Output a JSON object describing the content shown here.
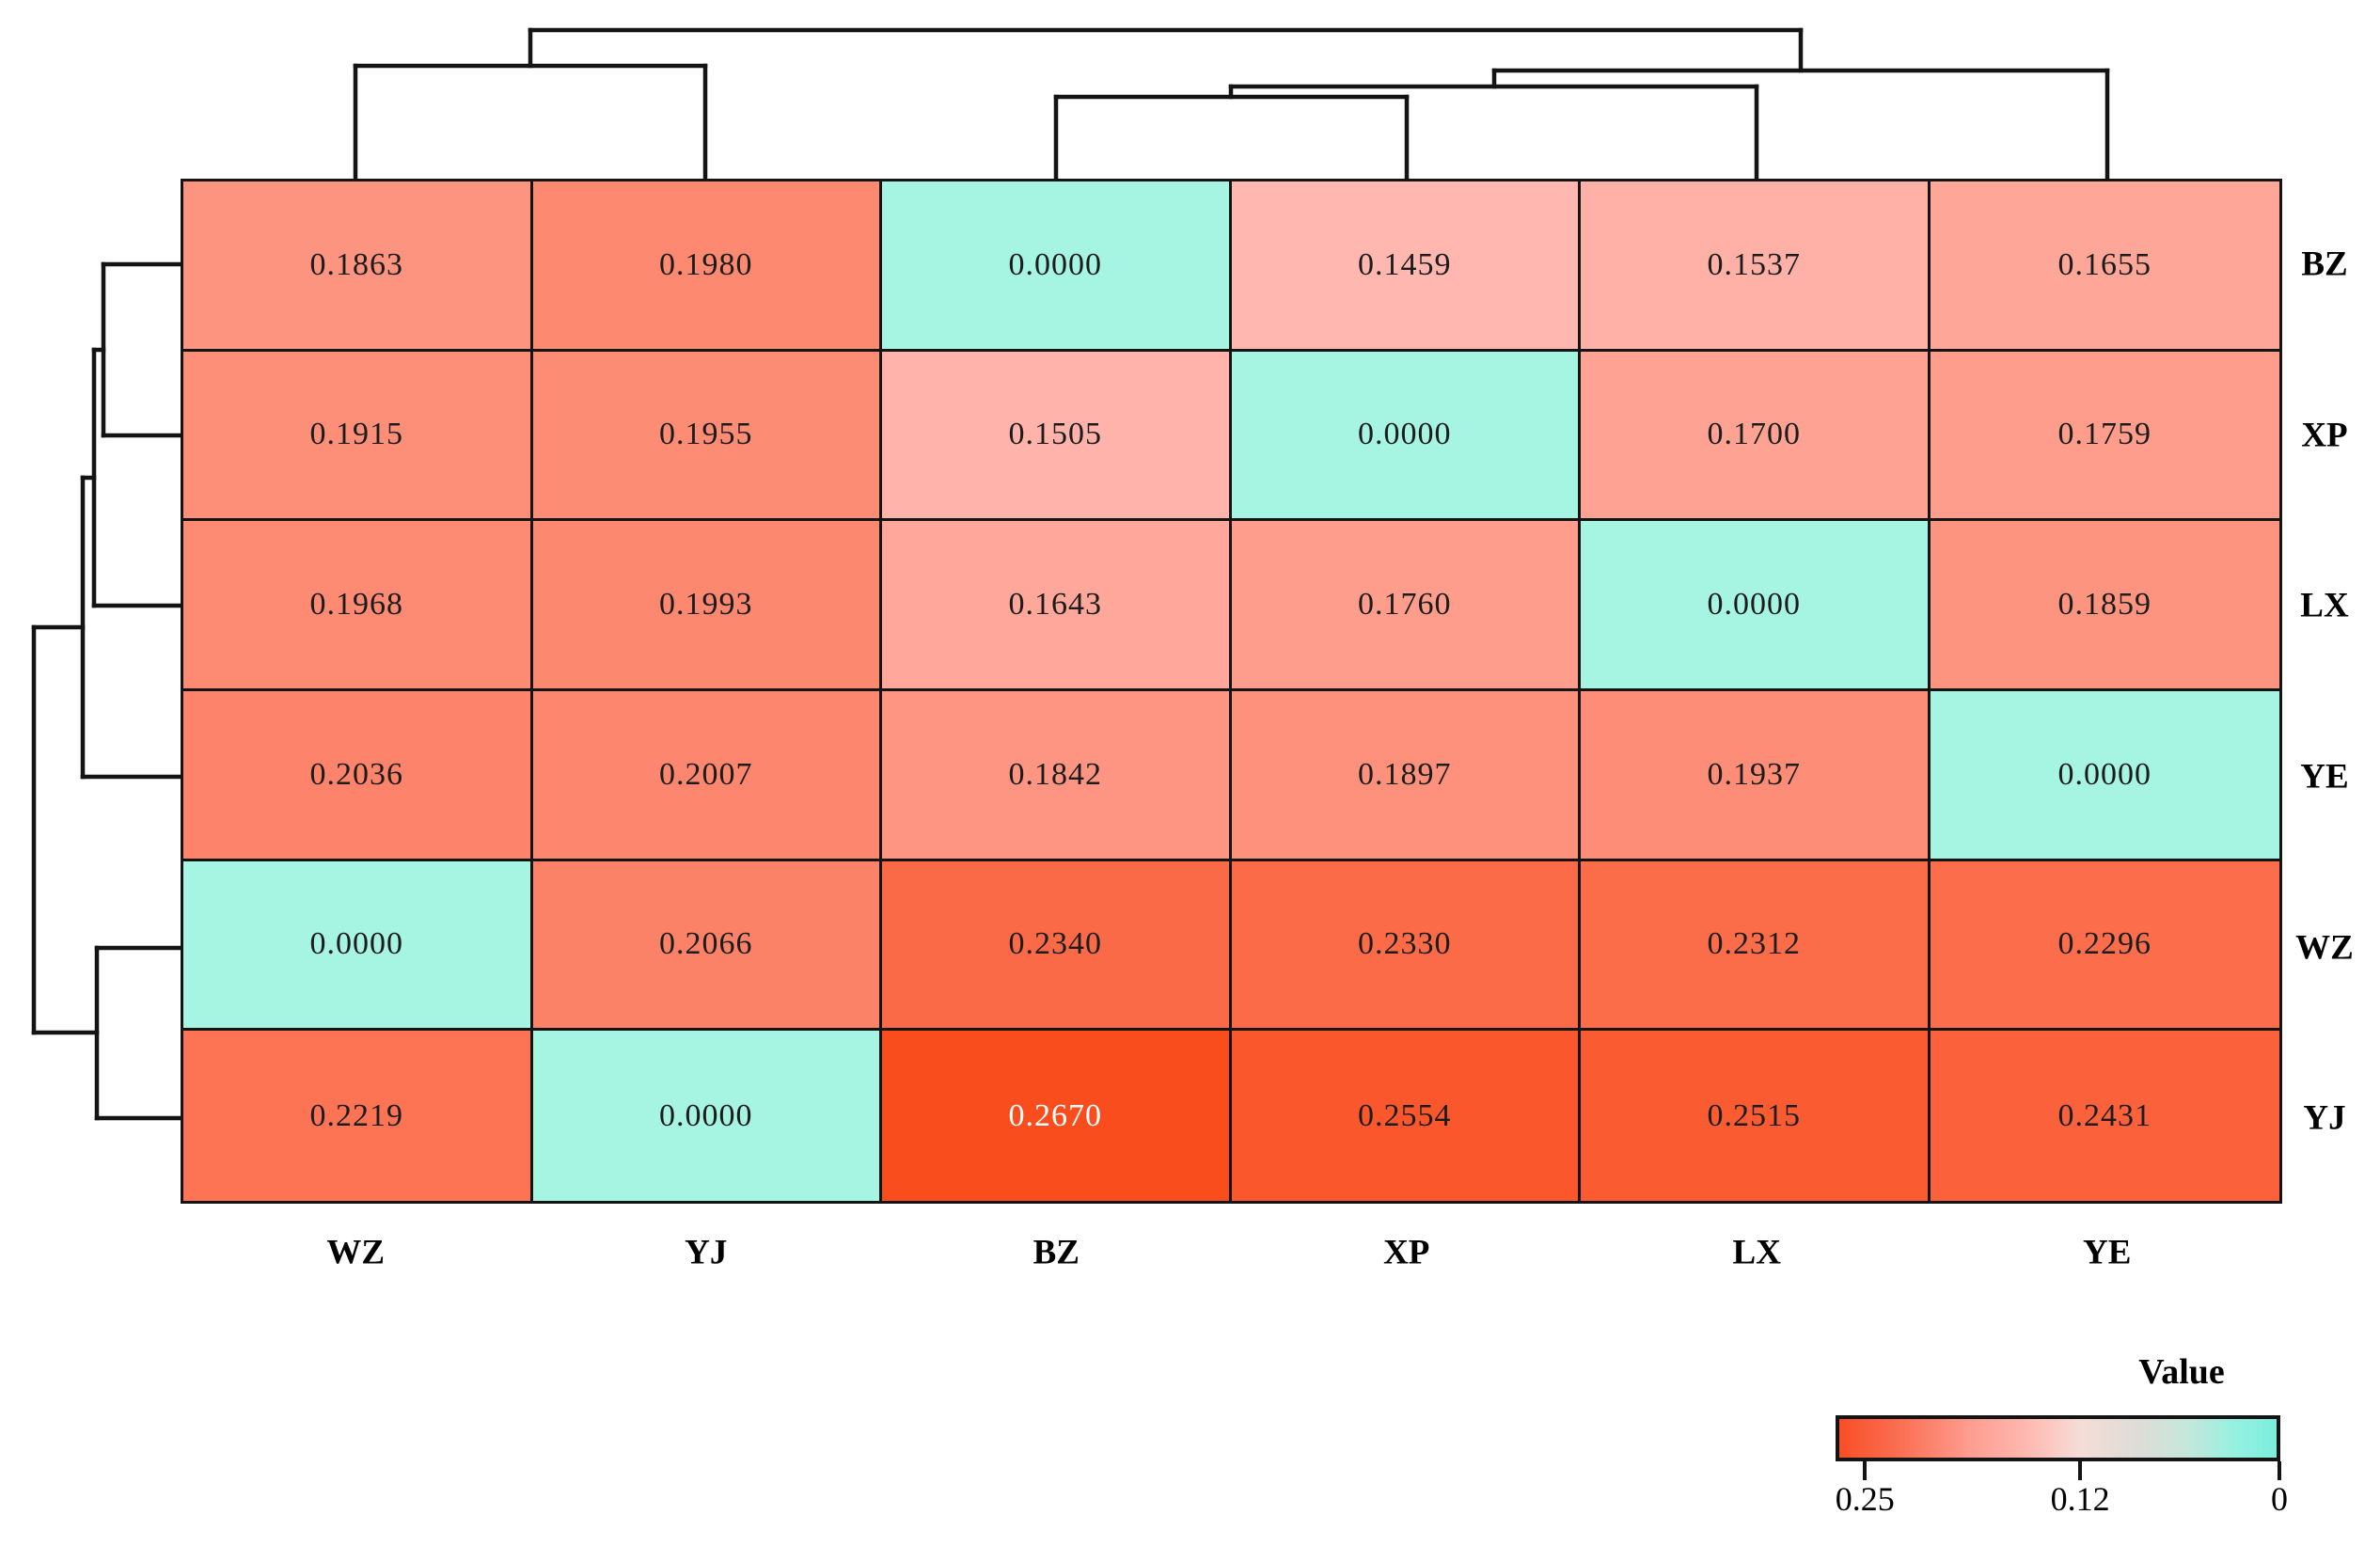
{
  "figure": {
    "background_color": "#ffffff"
  },
  "chart_data": {
    "type": "heatmap",
    "title": "",
    "rows": [
      "BZ",
      "XP",
      "LX",
      "YE",
      "WZ",
      "YJ"
    ],
    "columns": [
      "WZ",
      "YJ",
      "BZ",
      "XP",
      "LX",
      "YE"
    ],
    "values": [
      [
        0.1863,
        0.198,
        0.0,
        0.1459,
        0.1537,
        0.1655
      ],
      [
        0.1915,
        0.1955,
        0.1505,
        0.0,
        0.17,
        0.1759
      ],
      [
        0.1968,
        0.1993,
        0.1643,
        0.176,
        0.0,
        0.1859
      ],
      [
        0.2036,
        0.2007,
        0.1842,
        0.1897,
        0.1937,
        0.0
      ],
      [
        0.0,
        0.2066,
        0.234,
        0.233,
        0.2312,
        0.2296
      ],
      [
        0.2219,
        0.0,
        0.267,
        0.2554,
        0.2515,
        0.2431
      ]
    ],
    "value_decimals": 4,
    "grid_on": true,
    "colors": {
      "zero_cell": "#a6f4e2",
      "low_anchor_value": 0.1459,
      "low_anchor_color": "#ffb7b0",
      "high_anchor_value": 0.267,
      "high_anchor_color": "#fa4d1e",
      "white_text_threshold": 0.26,
      "cell_text_dark": "#1c1c1c",
      "cell_text_light": "#ffffff",
      "grid_line": "#141414",
      "dendrogram_line": "#141414"
    },
    "legend": {
      "title": "Value",
      "position": "bottom-right",
      "domain_left_value": 0.267,
      "domain_right_value": 0,
      "gradient_stops": [
        {
          "pos": 0.0,
          "color": "#f84e26"
        },
        {
          "pos": 0.15,
          "color": "#fb7257"
        },
        {
          "pos": 0.3,
          "color": "#fe9d91"
        },
        {
          "pos": 0.42,
          "color": "#ffb6ae"
        },
        {
          "pos": 0.55,
          "color": "#f6dcd7"
        },
        {
          "pos": 0.68,
          "color": "#dedcd6"
        },
        {
          "pos": 0.8,
          "color": "#c4e7db"
        },
        {
          "pos": 0.9,
          "color": "#97f0e0"
        },
        {
          "pos": 1.0,
          "color": "#7ceedd"
        }
      ],
      "ticks": [
        {
          "label": "0.25",
          "pos": 0.066
        },
        {
          "label": "0.12",
          "pos": 0.55
        },
        {
          "label": "0",
          "pos": 0.998
        }
      ]
    },
    "dendrograms": {
      "top_leaf_order": [
        "WZ",
        "YJ",
        "BZ",
        "XP",
        "LX",
        "YE"
      ],
      "left_leaf_order": [
        "BZ",
        "XP",
        "LX",
        "YE",
        "WZ",
        "YJ"
      ],
      "top_segments": [
        [
          378,
          190,
          378,
          70
        ],
        [
          750,
          190,
          750,
          70
        ],
        [
          378,
          70,
          750,
          70
        ],
        [
          1123,
          190,
          1123,
          103
        ],
        [
          1496,
          190,
          1496,
          103
        ],
        [
          1123,
          103,
          1496,
          103
        ],
        [
          1309,
          103,
          1309,
          92
        ],
        [
          1868,
          190,
          1868,
          92
        ],
        [
          1309,
          92,
          1868,
          92
        ],
        [
          1589,
          92,
          1589,
          75
        ],
        [
          2241,
          190,
          2241,
          75
        ],
        [
          1589,
          75,
          2241,
          75
        ],
        [
          564,
          70,
          564,
          32
        ],
        [
          1915,
          75,
          1915,
          32
        ],
        [
          564,
          32,
          1915,
          32
        ]
      ],
      "left_segments": [
        [
          110,
          281,
          192,
          281
        ],
        [
          110,
          463,
          192,
          463
        ],
        [
          110,
          281,
          110,
          463
        ],
        [
          100,
          372,
          110,
          372
        ],
        [
          100,
          644,
          192,
          644
        ],
        [
          100,
          372,
          100,
          644
        ],
        [
          88,
          508,
          100,
          508
        ],
        [
          88,
          826,
          192,
          826
        ],
        [
          88,
          508,
          88,
          826
        ],
        [
          103,
          1008,
          192,
          1008
        ],
        [
          103,
          1189,
          192,
          1189
        ],
        [
          103,
          1008,
          103,
          1189
        ],
        [
          36,
          667,
          88,
          667
        ],
        [
          36,
          1098,
          103,
          1098
        ],
        [
          36,
          667,
          36,
          1098
        ]
      ]
    }
  }
}
